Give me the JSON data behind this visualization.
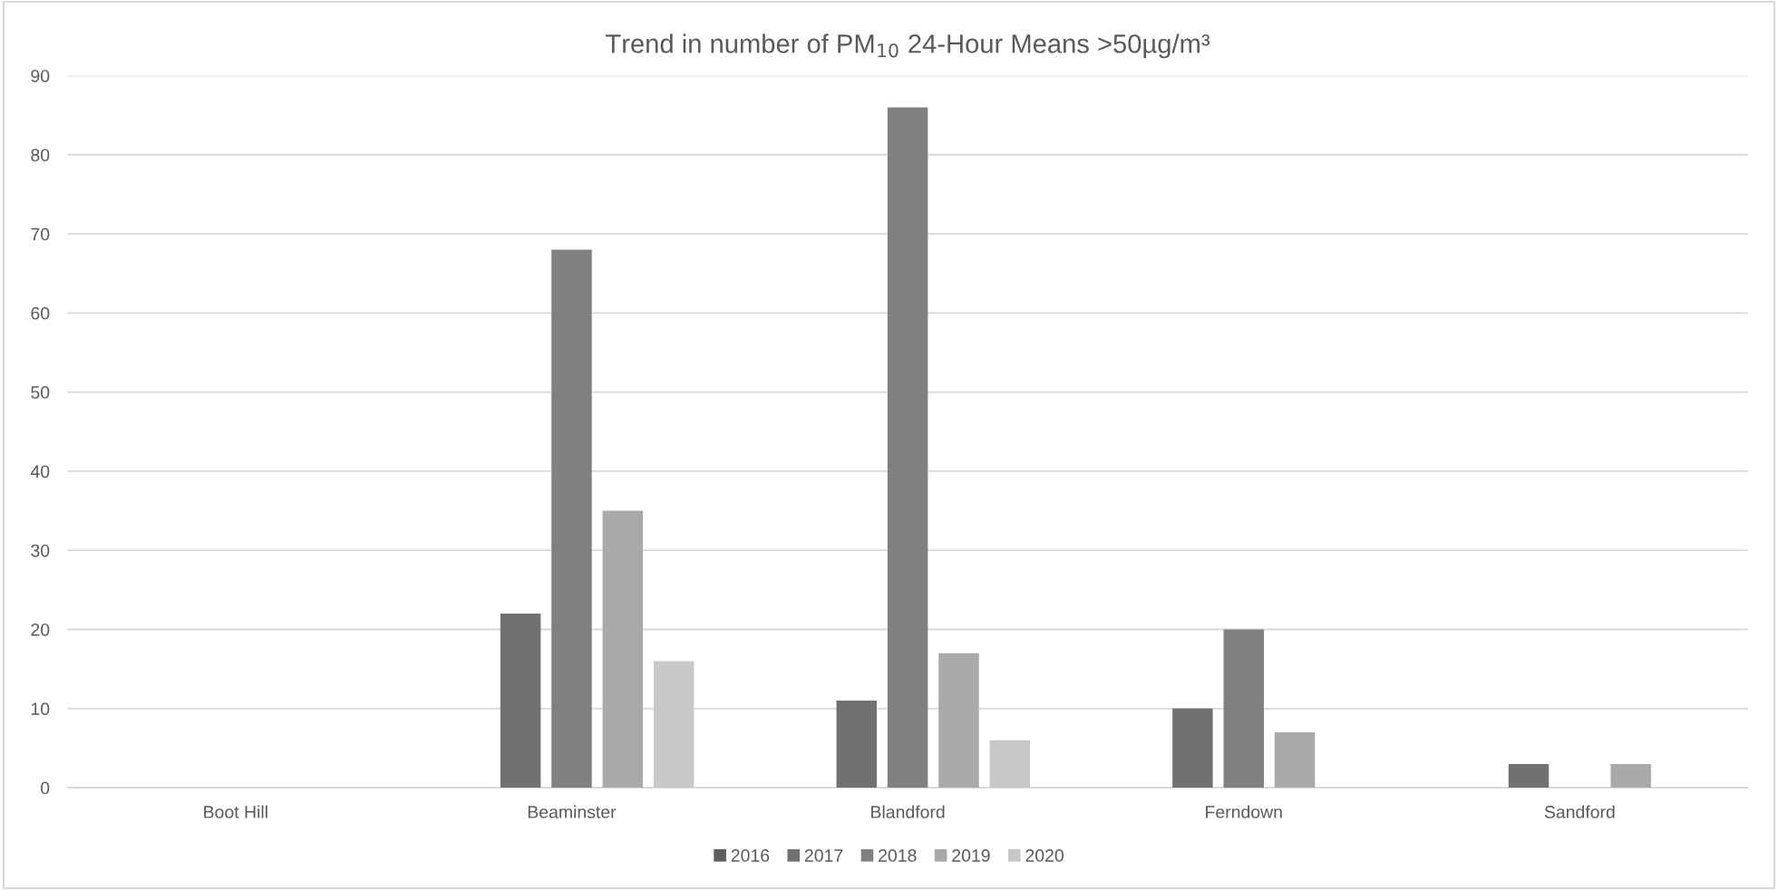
{
  "chart_data": {
    "type": "bar",
    "title": "Trend in number of PM$_{10}$ 24-Hour Means >50µg/m³",
    "categories": [
      "Boot Hill",
      "Beaminster",
      "Blandford",
      "Ferndown",
      "Sandford"
    ],
    "series": [
      {
        "name": "2016",
        "color": "#5f5f5f",
        "values": [
          null,
          null,
          null,
          null,
          null
        ]
      },
      {
        "name": "2017",
        "color": "#717171",
        "values": [
          null,
          22,
          11,
          10,
          3
        ]
      },
      {
        "name": "2018",
        "color": "#808080",
        "values": [
          null,
          68,
          86,
          20,
          null
        ]
      },
      {
        "name": "2019",
        "color": "#a9a9a9",
        "values": [
          null,
          35,
          17,
          7,
          3
        ]
      },
      {
        "name": "2020",
        "color": "#c8c8c8",
        "values": [
          null,
          16,
          6,
          null,
          null
        ]
      }
    ],
    "ylim": [
      0,
      90
    ],
    "yticks": [
      0,
      10,
      20,
      30,
      40,
      50,
      60,
      70,
      80,
      90
    ],
    "grid": "y",
    "legend": "bottom"
  }
}
